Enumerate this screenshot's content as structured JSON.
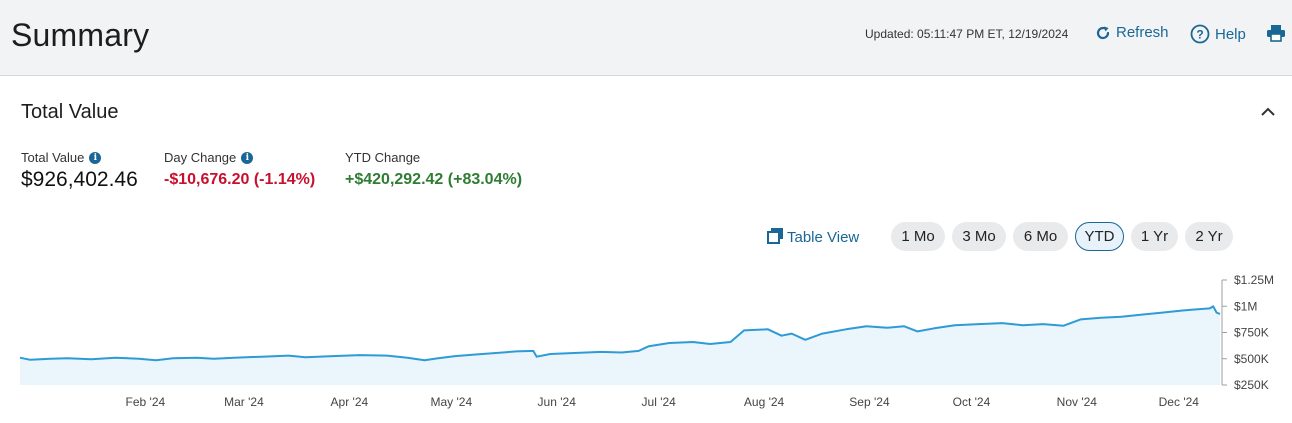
{
  "header": {
    "title": "Summary",
    "updated": "Updated: 05:11:47 PM ET, 12/19/2024",
    "refresh_label": "Refresh",
    "help_label": "Help",
    "print_label": ""
  },
  "section": {
    "title": "Total Value"
  },
  "metrics": {
    "total_value": {
      "label": "Total Value",
      "value": "$926,402.46"
    },
    "day_change": {
      "label": "Day Change",
      "value": "-$10,676.20 (-1.14%)"
    },
    "ytd_change": {
      "label": "YTD Change",
      "value": "+$420,292.42 (+83.04%)"
    }
  },
  "controls": {
    "table_view_label": "Table View",
    "ranges": [
      "1 Mo",
      "3 Mo",
      "6 Mo",
      "YTD",
      "1 Yr",
      "2 Yr"
    ],
    "selected_range": "YTD"
  },
  "colors": {
    "accent": "#1a6796",
    "negative": "#c8102e",
    "positive": "#2e7d32",
    "line": "#2e9bd6",
    "area": "#eaf5fc"
  },
  "icons": [
    "refresh-icon",
    "help-icon",
    "print-icon",
    "info-icon",
    "chevron-up-icon",
    "table-view-icon"
  ],
  "chart_data": {
    "type": "area",
    "y_tick_labels": [
      "$1.25M",
      "$1M",
      "$750K",
      "$500K",
      "$250K"
    ],
    "y_ticks": [
      1250000,
      1000000,
      750000,
      500000,
      250000
    ],
    "ylim": [
      250000,
      1250000
    ],
    "x_tick_labels": [
      "Feb '24",
      "Mar '24",
      "Apr '24",
      "May '24",
      "Jun '24",
      "Jul '24",
      "Aug '24",
      "Sep '24",
      "Oct '24",
      "Nov '24",
      "Dec '24"
    ],
    "x_tick_dates": [
      "2024-02-01",
      "2024-03-01",
      "2024-04-01",
      "2024-05-01",
      "2024-06-01",
      "2024-07-01",
      "2024-08-01",
      "2024-09-01",
      "2024-10-01",
      "2024-11-01",
      "2024-12-01"
    ],
    "x_range": [
      "2024-01-01",
      "2024-12-19"
    ],
    "axis_position": "right",
    "grid": false,
    "series": [
      {
        "points": [
          [
            "2024-01-01",
            510000
          ],
          [
            "2024-01-04",
            490000
          ],
          [
            "2024-01-10",
            500000
          ],
          [
            "2024-01-15",
            505000
          ],
          [
            "2024-01-22",
            495000
          ],
          [
            "2024-01-29",
            510000
          ],
          [
            "2024-02-05",
            500000
          ],
          [
            "2024-02-10",
            485000
          ],
          [
            "2024-02-15",
            505000
          ],
          [
            "2024-02-22",
            510000
          ],
          [
            "2024-02-27",
            500000
          ],
          [
            "2024-03-04",
            510000
          ],
          [
            "2024-03-12",
            520000
          ],
          [
            "2024-03-20",
            530000
          ],
          [
            "2024-03-25",
            515000
          ],
          [
            "2024-04-02",
            525000
          ],
          [
            "2024-04-10",
            535000
          ],
          [
            "2024-04-18",
            530000
          ],
          [
            "2024-04-24",
            510000
          ],
          [
            "2024-04-29",
            485000
          ],
          [
            "2024-05-03",
            505000
          ],
          [
            "2024-05-08",
            525000
          ],
          [
            "2024-05-14",
            540000
          ],
          [
            "2024-05-20",
            555000
          ],
          [
            "2024-05-26",
            570000
          ],
          [
            "2024-05-31",
            575000
          ],
          [
            "2024-06-01",
            520000
          ],
          [
            "2024-06-05",
            545000
          ],
          [
            "2024-06-12",
            555000
          ],
          [
            "2024-06-20",
            565000
          ],
          [
            "2024-06-26",
            560000
          ],
          [
            "2024-07-01",
            575000
          ],
          [
            "2024-07-04",
            620000
          ],
          [
            "2024-07-10",
            650000
          ],
          [
            "2024-07-17",
            660000
          ],
          [
            "2024-07-22",
            640000
          ],
          [
            "2024-07-28",
            660000
          ],
          [
            "2024-08-01",
            770000
          ],
          [
            "2024-08-08",
            780000
          ],
          [
            "2024-08-12",
            720000
          ],
          [
            "2024-08-15",
            740000
          ],
          [
            "2024-08-19",
            680000
          ],
          [
            "2024-08-24",
            740000
          ],
          [
            "2024-08-31",
            780000
          ],
          [
            "2024-09-06",
            810000
          ],
          [
            "2024-09-12",
            795000
          ],
          [
            "2024-09-17",
            810000
          ],
          [
            "2024-09-21",
            760000
          ],
          [
            "2024-09-26",
            790000
          ],
          [
            "2024-10-02",
            820000
          ],
          [
            "2024-10-09",
            830000
          ],
          [
            "2024-10-16",
            840000
          ],
          [
            "2024-10-22",
            820000
          ],
          [
            "2024-10-28",
            830000
          ],
          [
            "2024-11-03",
            815000
          ],
          [
            "2024-11-08",
            875000
          ],
          [
            "2024-11-14",
            890000
          ],
          [
            "2024-11-20",
            900000
          ],
          [
            "2024-11-26",
            920000
          ],
          [
            "2024-12-02",
            940000
          ],
          [
            "2024-12-08",
            960000
          ],
          [
            "2024-12-12",
            970000
          ],
          [
            "2024-12-16",
            980000
          ],
          [
            "2024-12-17",
            1000000
          ],
          [
            "2024-12-18",
            940000
          ],
          [
            "2024-12-19",
            926402
          ]
        ]
      }
    ]
  }
}
